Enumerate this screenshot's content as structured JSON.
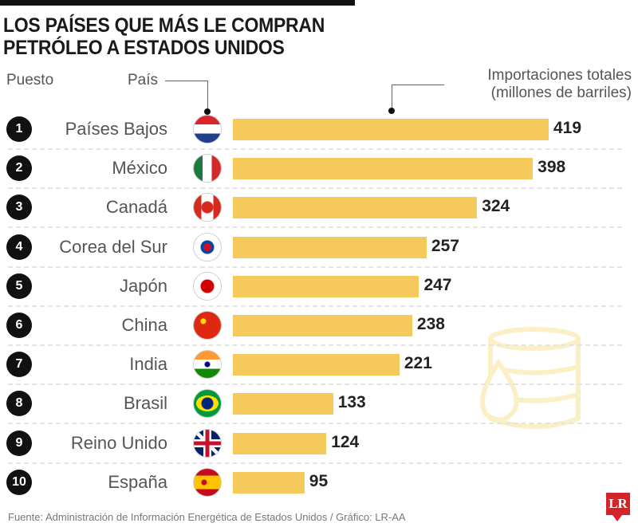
{
  "title_line1": "LOS PAÍSES QUE MÁS LE COMPRAN",
  "title_line2": "PETRÓLEO A ESTADOS UNIDOS",
  "headers": {
    "rank": "Puesto",
    "country": "País",
    "value_line1": "Importaciones totales",
    "value_line2": "(millones de barriles)"
  },
  "source": "Fuente: Administración de Información Energética de Estados Unidos / Gráfico: LR-AA",
  "logo": "LR",
  "colors": {
    "bar": "#f5c95c",
    "rank_badge": "#111111",
    "logo": "#d5232a"
  },
  "chart_data": {
    "type": "bar",
    "orientation": "horizontal",
    "categories": [
      "Países Bajos",
      "México",
      "Canadá",
      "Corea del Sur",
      "Japón",
      "China",
      "India",
      "Brasil",
      "Reino Unido",
      "España"
    ],
    "ranks": [
      "1",
      "2",
      "3",
      "4",
      "5",
      "6",
      "7",
      "8",
      "9",
      "10"
    ],
    "values": [
      419,
      398,
      324,
      257,
      247,
      238,
      221,
      133,
      124,
      95
    ],
    "flag_icons": [
      "netherlands-flag",
      "mexico-flag",
      "canada-flag",
      "south-korea-flag",
      "japan-flag",
      "china-flag",
      "india-flag",
      "brazil-flag",
      "uk-flag",
      "spain-flag"
    ],
    "xlabel": "Importaciones totales (millones de barriles)",
    "grid": false
  }
}
